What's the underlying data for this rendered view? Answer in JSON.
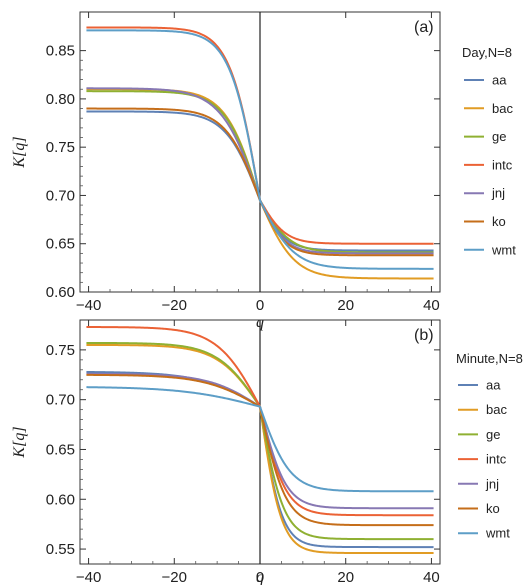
{
  "chart_data": [
    {
      "type": "line",
      "panel_tag": "(a)",
      "xlabel": "q",
      "ylabel": "K[q]",
      "xlim": [
        -42,
        42
      ],
      "ylim": [
        0.6,
        0.89
      ],
      "x_ticks": [
        -40,
        -20,
        0,
        20,
        40
      ],
      "x_tick_labels": [
        "−40",
        "−20",
        "0",
        "20",
        "40"
      ],
      "y_ticks": [
        0.6,
        0.65,
        0.7,
        0.75,
        0.8,
        0.85
      ],
      "y_tick_labels": [
        "0.60",
        "0.65",
        "0.70",
        "0.75",
        "0.80",
        "0.85"
      ],
      "legend_title": "Day,N=8",
      "legend_placement": "right",
      "center": 0.695,
      "series": [
        {
          "name": "aa",
          "color": "#5e81b5",
          "left": 0.787,
          "right": 0.643,
          "scale_left": 8,
          "scale_right": 6
        },
        {
          "name": "bac",
          "color": "#e19c24",
          "left": 0.81,
          "right": 0.614,
          "scale_left": 8,
          "scale_right": 8
        },
        {
          "name": "ge",
          "color": "#8fb032",
          "left": 0.808,
          "right": 0.641,
          "scale_left": 8,
          "scale_right": 7
        },
        {
          "name": "intc",
          "color": "#eb6235",
          "left": 0.874,
          "right": 0.65,
          "scale_left": 7,
          "scale_right": 6
        },
        {
          "name": "jnj",
          "color": "#8778b3",
          "left": 0.811,
          "right": 0.64,
          "scale_left": 9,
          "scale_right": 6
        },
        {
          "name": "ko",
          "color": "#c56e1a",
          "left": 0.79,
          "right": 0.638,
          "scale_left": 8,
          "scale_right": 6
        },
        {
          "name": "wmt",
          "color": "#5d9ec7",
          "left": 0.871,
          "right": 0.624,
          "scale_left": 7,
          "scale_right": 8
        }
      ]
    },
    {
      "type": "line",
      "panel_tag": "(b)",
      "xlabel": "q",
      "ylabel": "K[q]",
      "xlim": [
        -42,
        42
      ],
      "ylim": [
        0.535,
        0.78
      ],
      "x_ticks": [
        -40,
        -20,
        0,
        20,
        40
      ],
      "x_tick_labels": [
        "−40",
        "−20",
        "0",
        "20",
        "40"
      ],
      "y_ticks": [
        0.55,
        0.6,
        0.65,
        0.7,
        0.75
      ],
      "y_tick_labels": [
        "0.55",
        "0.60",
        "0.65",
        "0.70",
        "0.75"
      ],
      "legend_title": "Minute,N=8",
      "legend_placement": "right",
      "center": 0.693,
      "series": [
        {
          "name": "aa",
          "color": "#5e81b5",
          "left": 0.728,
          "right": 0.552,
          "scale_left": 14,
          "scale_right": 5
        },
        {
          "name": "bac",
          "color": "#e19c24",
          "left": 0.755,
          "right": 0.546,
          "scale_left": 10,
          "scale_right": 5
        },
        {
          "name": "ge",
          "color": "#8fb032",
          "left": 0.757,
          "right": 0.56,
          "scale_left": 10,
          "scale_right": 5.5
        },
        {
          "name": "intc",
          "color": "#eb6235",
          "left": 0.773,
          "right": 0.584,
          "scale_left": 10,
          "scale_right": 6
        },
        {
          "name": "jnj",
          "color": "#8778b3",
          "left": 0.726,
          "right": 0.591,
          "scale_left": 12,
          "scale_right": 6
        },
        {
          "name": "ko",
          "color": "#c56e1a",
          "left": 0.725,
          "right": 0.574,
          "scale_left": 13,
          "scale_right": 6
        },
        {
          "name": "wmt",
          "color": "#5d9ec7",
          "left": 0.713,
          "right": 0.608,
          "scale_left": 18,
          "scale_right": 7
        }
      ]
    }
  ]
}
